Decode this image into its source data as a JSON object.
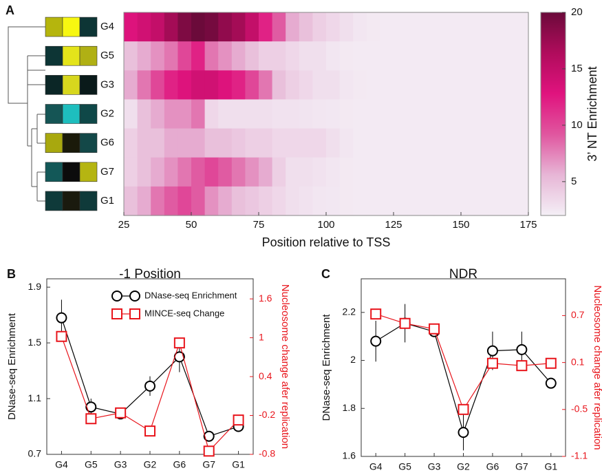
{
  "chart_data": [
    {
      "type": "heatmap",
      "panel": "A",
      "xlabel": "Position relative to TSS",
      "colorbar_label": "3’ NT Enrichment",
      "rows": [
        "G4",
        "G5",
        "G3",
        "G2",
        "G6",
        "G7",
        "G1"
      ],
      "row_colors": [
        [
          "#b5b50d",
          "#f7f711",
          "#0d3535"
        ],
        [
          "#0d3535",
          "#e4e41a",
          "#b0b014"
        ],
        [
          "#0b2626",
          "#d7d71e",
          "#0a1a1a"
        ],
        [
          "#155555",
          "#1ebebe",
          "#0f4848"
        ],
        [
          "#a8a80e",
          "#1a1a0a",
          "#134848"
        ],
        [
          "#135858",
          "#0c0c0c",
          "#b5b512"
        ],
        [
          "#0f3a3a",
          "#1a1a0e",
          "#0f3a3a"
        ]
      ],
      "bins": [
        25,
        30,
        35,
        40,
        45,
        50,
        55,
        60,
        65,
        70,
        75,
        80,
        85,
        90,
        95,
        100,
        105,
        110,
        115,
        120,
        125,
        130,
        135,
        140,
        145,
        150,
        155,
        160,
        165,
        170,
        175
      ],
      "z": [
        [
          13,
          14,
          15,
          17,
          19,
          20,
          19.5,
          18,
          17,
          15,
          12,
          9,
          6,
          5,
          4,
          3.5,
          3,
          2.6,
          2.4,
          2.3,
          2.3,
          2.3,
          2.3,
          2.3,
          2.3,
          2.3,
          2.3,
          2.3,
          2.3,
          2.3
        ],
        [
          5,
          6,
          7,
          8,
          10,
          12,
          8,
          7,
          6,
          5,
          4,
          4,
          3.5,
          3,
          3,
          2.6,
          2.4,
          2.3,
          2.3,
          2.3,
          2.3,
          2.3,
          2.3,
          2.3,
          2.3,
          2.3,
          2.3,
          2.3,
          2.3,
          2.3
        ],
        [
          6,
          8,
          10,
          12,
          13,
          14,
          14,
          13,
          12,
          10,
          8,
          5,
          4,
          3.5,
          3,
          3,
          2.6,
          2.4,
          2.3,
          2.3,
          2.3,
          2.3,
          2.3,
          2.3,
          2.3,
          2.3,
          2.3,
          2.3,
          2.3,
          2.3
        ],
        [
          3,
          5,
          6,
          7,
          7,
          8,
          3.5,
          3,
          3,
          3,
          3,
          2.8,
          2.8,
          2.7,
          2.6,
          2.5,
          2.4,
          2.3,
          2.3,
          2.3,
          2.3,
          2.3,
          2.3,
          2.3,
          2.3,
          2.3,
          2.3,
          2.3,
          2.3,
          2.3
        ],
        [
          4,
          5,
          5,
          6,
          6,
          6,
          5,
          5,
          4.5,
          4,
          4,
          3.5,
          3.5,
          3.5,
          3.5,
          3,
          2.6,
          2.3,
          2.3,
          2.3,
          2.3,
          2.3,
          2.3,
          2.3,
          2.3,
          2.3,
          2.3,
          2.3,
          2.3,
          2.3
        ],
        [
          4,
          5,
          6,
          7,
          8,
          9,
          10,
          9,
          8,
          7,
          6,
          4,
          3,
          3,
          2.8,
          2.6,
          2.4,
          2.3,
          2.3,
          2.3,
          2.3,
          2.3,
          2.3,
          2.3,
          2.3,
          2.3,
          2.3,
          2.3,
          2.3,
          2.3
        ],
        [
          5,
          6,
          8,
          9,
          10,
          9,
          7,
          6,
          5,
          4.5,
          4,
          3.5,
          3,
          2.8,
          2.6,
          2.5,
          2.4,
          2.3,
          2.3,
          2.3,
          2.3,
          2.3,
          2.3,
          2.3,
          2.3,
          2.3,
          2.3,
          2.3,
          2.3,
          2.3
        ]
      ],
      "xlim": [
        25,
        175
      ],
      "xticks": [
        25,
        50,
        75,
        100,
        125,
        150,
        175
      ],
      "clim": [
        2,
        20
      ],
      "cticks": [
        5,
        10,
        15,
        20
      ],
      "colormap": [
        "#f4eff6",
        "#e7b6d6",
        "#e0569f",
        "#e0137e",
        "#b00c5c",
        "#6b0a3a"
      ]
    },
    {
      "type": "line",
      "panel": "B",
      "title": "-1 Position",
      "ylabel": "DNase-seq Enrichment",
      "y2label": "Nucleosome change afer replication",
      "categories": [
        "G4",
        "G5",
        "G3",
        "G2",
        "G6",
        "G7",
        "G1"
      ],
      "ylim": [
        0.7,
        1.96
      ],
      "yticks": [
        0.7,
        1.1,
        1.5,
        1.9
      ],
      "y2lim": [
        -0.8,
        1.91
      ],
      "y2ticks": [
        -0.8,
        -0.2,
        0.4,
        1,
        1.6
      ],
      "legend": "upper right",
      "series": [
        {
          "name": "DNase-seq Enrichment",
          "color": "#000000",
          "marker": "circle",
          "values": [
            1.68,
            1.04,
            0.99,
            1.19,
            1.4,
            0.83,
            0.9
          ],
          "errors": [
            0.13,
            0.06,
            0.02,
            0.07,
            0.11,
            0.03,
            0.02
          ]
        },
        {
          "name": "MINCE-seq Change",
          "color": "#e8141b",
          "marker": "square",
          "axis": "y2",
          "values": [
            1.02,
            -0.25,
            -0.16,
            -0.44,
            0.92,
            -0.75,
            -0.27
          ]
        }
      ]
    },
    {
      "type": "line",
      "panel": "C",
      "title": "NDR",
      "ylabel": "DNase-seq Enrichment",
      "y2label": "Nucleosome change afer replication",
      "categories": [
        "G4",
        "G5",
        "G3",
        "G2",
        "G6",
        "G7",
        "G1"
      ],
      "ylim": [
        1.6,
        2.34
      ],
      "yticks": [
        1.6,
        1.8,
        2,
        2.2
      ],
      "y2lim": [
        -1.1,
        1.17
      ],
      "y2ticks": [
        -1.1,
        -0.5,
        0.1,
        0.7
      ],
      "series": [
        {
          "name": "DNase-seq Enrichment",
          "color": "#000000",
          "marker": "circle",
          "values": [
            2.08,
            2.155,
            2.12,
            1.7,
            2.04,
            2.045,
            1.905
          ],
          "errors": [
            0.085,
            0.08,
            0.01,
            0.075,
            0.08,
            0.075,
            0.01
          ]
        },
        {
          "name": "MINCE-seq Change",
          "color": "#e8141b",
          "marker": "square",
          "axis": "y2",
          "values": [
            0.72,
            0.6,
            0.53,
            -0.5,
            0.09,
            0.06,
            0.09
          ]
        }
      ]
    }
  ]
}
